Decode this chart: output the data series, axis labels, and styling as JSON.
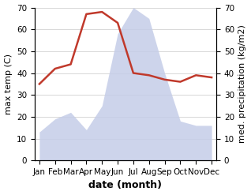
{
  "months": [
    "Jan",
    "Feb",
    "Mar",
    "Apr",
    "May",
    "Jun",
    "Jul",
    "Aug",
    "Sep",
    "Oct",
    "Nov",
    "Dec"
  ],
  "temperature": [
    35,
    42,
    44,
    67,
    68,
    63,
    40,
    39,
    37,
    36,
    39,
    38
  ],
  "precipitation": [
    13,
    19,
    22,
    14,
    25,
    58,
    70,
    65,
    40,
    18,
    16,
    16
  ],
  "temp_color": "#c0392b",
  "precip_fill_color": "#c5cde8",
  "precip_alpha": 0.85,
  "ylim": [
    0,
    70
  ],
  "ylabel_left": "max temp (C)",
  "ylabel_right": "med. precipitation (kg/m2)",
  "xlabel": "date (month)",
  "bg_color": "#ffffff",
  "grid_color": "#c8c8c8",
  "label_fontsize": 8,
  "tick_fontsize": 7.5,
  "xlabel_fontsize": 9,
  "linewidth": 1.8
}
